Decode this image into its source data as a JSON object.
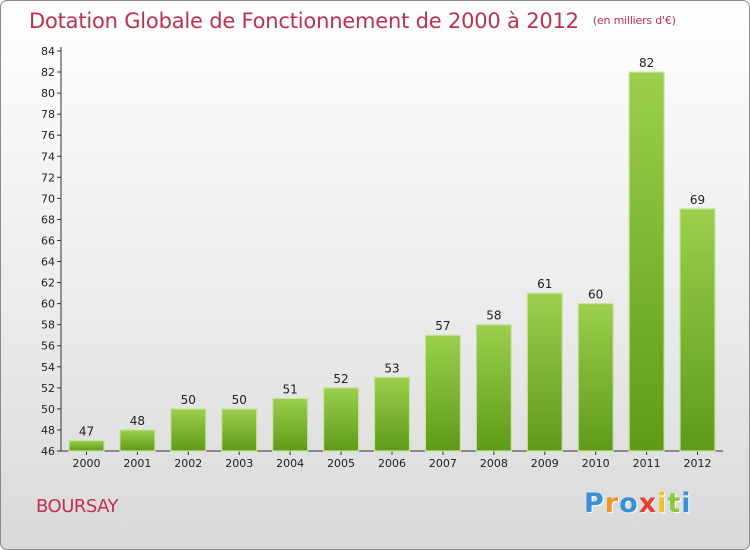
{
  "chart_data": {
    "type": "bar",
    "title": "Dotation Globale de Fonctionnement de 2000 à 2012",
    "subtitle": "(en milliers d'€)",
    "categories": [
      "2000",
      "2001",
      "2002",
      "2003",
      "2004",
      "2005",
      "2006",
      "2007",
      "2008",
      "2009",
      "2010",
      "2011",
      "2012"
    ],
    "values": [
      47,
      48,
      50,
      50,
      51,
      52,
      53,
      57,
      58,
      61,
      60,
      82,
      69
    ],
    "ylim": [
      46,
      84
    ],
    "yticks": [
      46,
      48,
      50,
      52,
      54,
      56,
      58,
      60,
      62,
      64,
      66,
      68,
      70,
      72,
      74,
      76,
      78,
      80,
      82,
      84
    ],
    "grid": false,
    "colors": {
      "bar_light": "#9ccf4e",
      "bar_dark": "#5e9a18",
      "title": "#c0304e"
    }
  },
  "commune": "BOURSAY",
  "brand": {
    "letters": [
      "P",
      "r",
      "o",
      "x",
      "i",
      "t",
      "i"
    ],
    "colors": [
      "#3a8fd6",
      "#f0962a",
      "#3a8fd6",
      "#e8402c",
      "#f0c020",
      "#8cc63f",
      "#3a8fd6"
    ]
  }
}
